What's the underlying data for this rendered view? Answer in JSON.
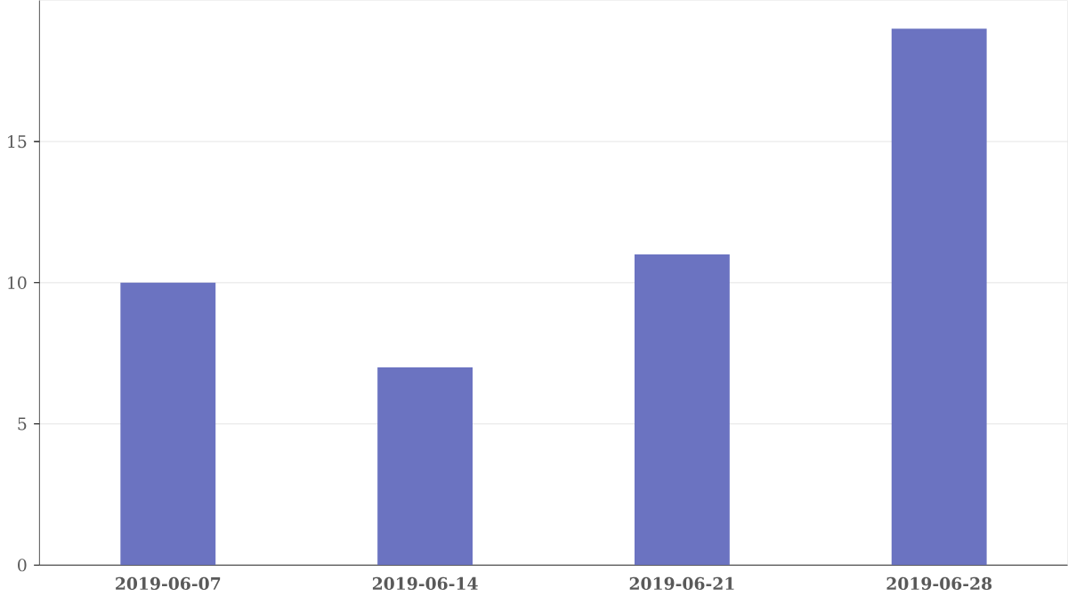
{
  "chart_data": {
    "type": "bar",
    "categories": [
      "2019-06-07",
      "2019-06-14",
      "2019-06-21",
      "2019-06-28"
    ],
    "values": [
      10,
      7,
      11,
      19
    ],
    "color": "#6b73c1",
    "ylim": [
      0,
      20
    ],
    "yticks": [
      0,
      5,
      10,
      15
    ],
    "grid": "y"
  }
}
